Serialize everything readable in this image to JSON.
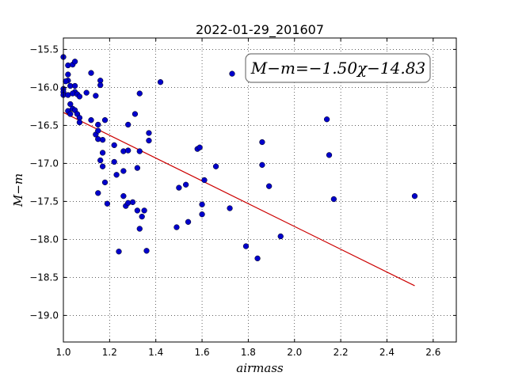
{
  "chart_data": {
    "type": "scatter",
    "title": "2022-01-29_201607",
    "xlabel": "airmass",
    "ylabel": "M−m",
    "annotation": "M−m=−1.50χ−14.83",
    "xlim": [
      1.0,
      2.7
    ],
    "ylim": [
      -19.35,
      -15.35
    ],
    "xticks": [
      1.0,
      1.2,
      1.4,
      1.6,
      1.8,
      2.0,
      2.2,
      2.4,
      2.6
    ],
    "yticks": [
      -15.5,
      -16.0,
      -16.5,
      -17.0,
      -17.5,
      -18.0,
      -18.5,
      -19.0
    ],
    "grid": true,
    "colors": {
      "points": "#0000cc",
      "fit": "#cc0000"
    },
    "fit": {
      "slope": -1.5,
      "intercept": -14.83,
      "x_range": [
        1.0,
        2.52
      ]
    },
    "points": [
      [
        1.0,
        -15.6
      ],
      [
        1.0,
        -16.02
      ],
      [
        1.0,
        -16.06
      ],
      [
        1.0,
        -16.1
      ],
      [
        1.02,
        -15.71
      ],
      [
        1.02,
        -15.83
      ],
      [
        1.02,
        -15.91
      ],
      [
        1.01,
        -15.92
      ],
      [
        1.04,
        -15.7
      ],
      [
        1.05,
        -15.66
      ],
      [
        1.03,
        -15.98
      ],
      [
        1.05,
        -15.98
      ],
      [
        1.05,
        -16.06
      ],
      [
        1.02,
        -16.1
      ],
      [
        1.04,
        -16.08
      ],
      [
        1.06,
        -16.09
      ],
      [
        1.07,
        -16.12
      ],
      [
        1.03,
        -16.22
      ],
      [
        1.04,
        -16.28
      ],
      [
        1.02,
        -16.31
      ],
      [
        1.05,
        -16.3
      ],
      [
        1.03,
        -16.35
      ],
      [
        1.06,
        -16.35
      ],
      [
        1.07,
        -16.4
      ],
      [
        1.07,
        -16.46
      ],
      [
        1.1,
        -16.07
      ],
      [
        1.12,
        -15.81
      ],
      [
        1.14,
        -16.11
      ],
      [
        1.16,
        -15.91
      ],
      [
        1.16,
        -15.97
      ],
      [
        1.12,
        -16.43
      ],
      [
        1.15,
        -16.49
      ],
      [
        1.18,
        -16.43
      ],
      [
        1.14,
        -16.62
      ],
      [
        1.15,
        -16.57
      ],
      [
        1.15,
        -16.68
      ],
      [
        1.17,
        -16.69
      ],
      [
        1.17,
        -16.86
      ],
      [
        1.16,
        -16.96
      ],
      [
        1.17,
        -17.04
      ],
      [
        1.18,
        -17.25
      ],
      [
        1.15,
        -17.39
      ],
      [
        1.19,
        -17.53
      ],
      [
        1.22,
        -16.76
      ],
      [
        1.22,
        -16.98
      ],
      [
        1.23,
        -17.15
      ],
      [
        1.26,
        -16.84
      ],
      [
        1.28,
        -16.83
      ],
      [
        1.28,
        -16.49
      ],
      [
        1.31,
        -16.35
      ],
      [
        1.33,
        -16.08
      ],
      [
        1.33,
        -16.84
      ],
      [
        1.32,
        -17.06
      ],
      [
        1.26,
        -17.1
      ],
      [
        1.26,
        -17.43
      ],
      [
        1.27,
        -17.56
      ],
      [
        1.28,
        -17.52
      ],
      [
        1.3,
        -17.51
      ],
      [
        1.32,
        -17.62
      ],
      [
        1.35,
        -17.62
      ],
      [
        1.34,
        -17.7
      ],
      [
        1.33,
        -17.86
      ],
      [
        1.24,
        -18.16
      ],
      [
        1.36,
        -18.15
      ],
      [
        1.37,
        -16.6
      ],
      [
        1.37,
        -16.7
      ],
      [
        1.42,
        -15.93
      ],
      [
        1.49,
        -17.84
      ],
      [
        1.5,
        -17.32
      ],
      [
        1.53,
        -17.28
      ],
      [
        1.54,
        -17.77
      ],
      [
        1.58,
        -16.81
      ],
      [
        1.59,
        -16.79
      ],
      [
        1.6,
        -17.54
      ],
      [
        1.6,
        -17.67
      ],
      [
        1.61,
        -17.22
      ],
      [
        1.66,
        -17.04
      ],
      [
        1.72,
        -17.59
      ],
      [
        1.73,
        -15.82
      ],
      [
        1.79,
        -18.09
      ],
      [
        1.84,
        -18.25
      ],
      [
        1.86,
        -16.72
      ],
      [
        1.86,
        -17.02
      ],
      [
        1.89,
        -17.3
      ],
      [
        1.94,
        -17.96
      ],
      [
        2.14,
        -16.42
      ],
      [
        2.15,
        -16.89
      ],
      [
        2.17,
        -17.47
      ],
      [
        2.52,
        -17.43
      ]
    ]
  }
}
